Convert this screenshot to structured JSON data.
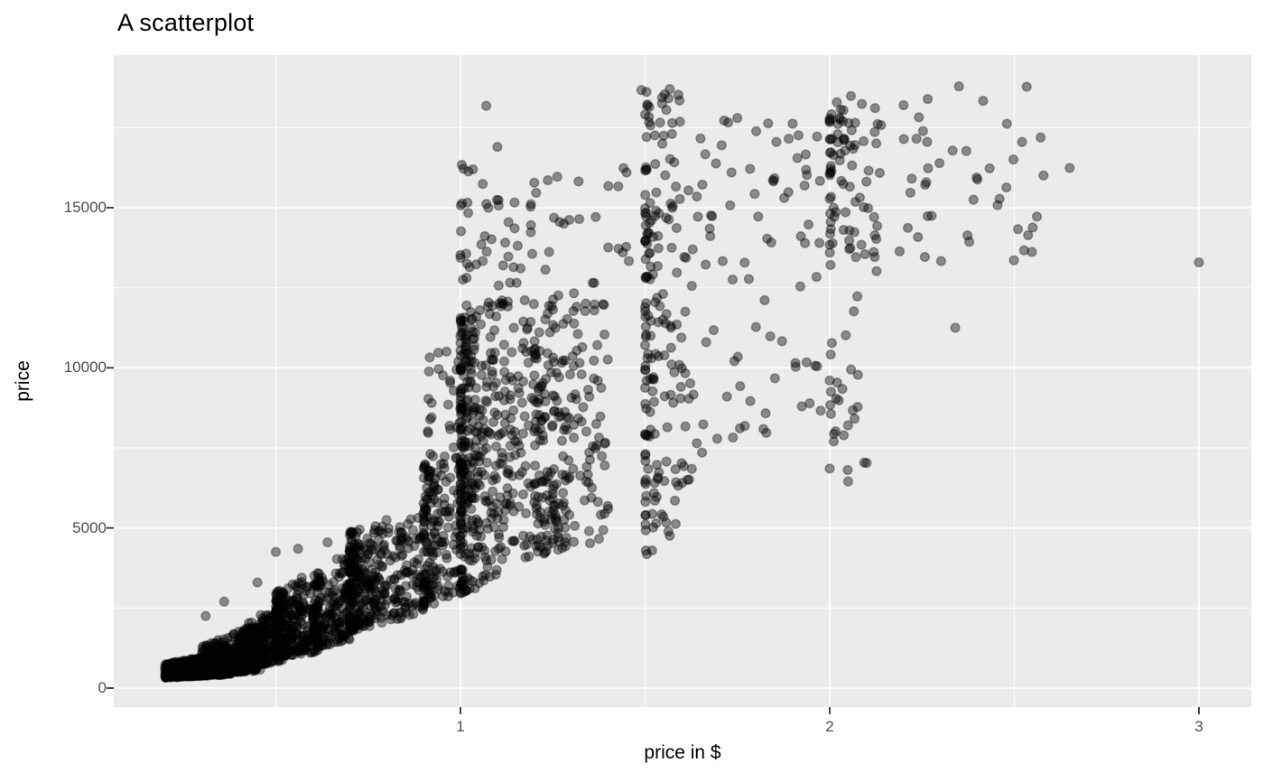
{
  "title": "A scatterplot",
  "axes": {
    "x_title": "price in $",
    "y_title": "price"
  },
  "chart_data": {
    "type": "scatter",
    "title": "A scatterplot",
    "xlabel": "price in $",
    "ylabel": "price",
    "xlim": [
      0.061,
      3.142
    ],
    "ylim": [
      -592,
      19765
    ],
    "x_ticks": [
      1,
      2,
      3
    ],
    "y_ticks": [
      0,
      5000,
      10000,
      15000
    ],
    "x_minor_ticks": [
      0.5,
      1.5,
      2.5
    ],
    "y_minor_ticks": [
      2500,
      7500,
      12500,
      17500
    ],
    "grid": "on",
    "legend": "none",
    "colors": {
      "panel_bg": "#EBEBEB",
      "grid": "#FFFFFF",
      "tick_mark": "#333333",
      "tick_label": "#4D4D4D",
      "title_text": "#000000",
      "point": "#000000"
    },
    "point_style": {
      "radius": 4.9,
      "fill_opacity": 0.42,
      "stroke_opacity": 0.32,
      "stroke_width": 1.5
    },
    "seed": 7,
    "cluster_fields": "x0,x1,n,x_exponent,ymin_left,ymin_right,ymax_left,ymax_right,y_exponent",
    "point_clusters": [
      [
        0.2,
        0.38,
        560,
        1.0,
        326,
        430,
        750,
        1150,
        1.3
      ],
      [
        0.23,
        0.36,
        350,
        1.0,
        340,
        430,
        640,
        900,
        1.1
      ],
      [
        0.3,
        0.47,
        340,
        1.0,
        420,
        560,
        1300,
        2100,
        1.5
      ],
      [
        0.4,
        0.52,
        220,
        1.0,
        600,
        850,
        1900,
        2700,
        1.4
      ],
      [
        0.5,
        0.62,
        300,
        1.7,
        950,
        1150,
        3000,
        3700,
        1.4
      ],
      [
        0.6,
        0.7,
        160,
        1.0,
        1250,
        1500,
        3600,
        4300,
        1.3
      ],
      [
        0.7,
        0.8,
        250,
        1.9,
        1750,
        2050,
        4900,
        5300,
        1.25
      ],
      [
        0.8,
        0.9,
        95,
        1.0,
        2050,
        2350,
        5100,
        5500,
        1.2
      ],
      [
        0.9,
        1.0,
        175,
        1.9,
        2550,
        2850,
        7300,
        7800,
        1.15
      ],
      [
        0.91,
        1.0,
        22,
        1.5,
        7800,
        8000,
        10800,
        11000,
        1.0
      ],
      [
        1.0,
        1.1,
        310,
        2.3,
        2950,
        3350,
        11600,
        12400,
        1.1
      ],
      [
        1.0,
        1.13,
        36,
        2.0,
        11600,
        11800,
        16600,
        17000,
        1.0
      ],
      [
        1.1,
        1.4,
        240,
        1.15,
        3900,
        4600,
        12100,
        12900,
        1.15
      ],
      [
        1.2,
        1.3,
        90,
        2.1,
        4300,
        4700,
        11200,
        11600,
        1.1
      ],
      [
        1.12,
        1.47,
        30,
        1.0,
        12200,
        12600,
        16000,
        16400,
        1.0
      ],
      [
        1.5,
        1.63,
        160,
        2.3,
        3900,
        5100,
        15400,
        15900,
        0.95
      ],
      [
        1.5,
        1.6,
        32,
        2.0,
        15900,
        16100,
        18750,
        18850,
        1.0
      ],
      [
        1.63,
        1.98,
        80,
        1.0,
        6900,
        8600,
        17700,
        18100,
        1.0
      ],
      [
        2.0,
        2.13,
        85,
        2.3,
        12600,
        12900,
        18400,
        18600,
        0.95
      ],
      [
        2.0,
        2.1,
        26,
        2.3,
        6400,
        6600,
        12100,
        12400,
        1.0
      ],
      [
        2.13,
        2.58,
        40,
        1.0,
        12800,
        13200,
        18900,
        19000,
        1.0
      ]
    ],
    "outlier_points": [
      [
        3.0,
        13290
      ],
      [
        2.65,
        16240
      ],
      [
        2.51,
        14330
      ],
      [
        2.55,
        14380
      ],
      [
        2.34,
        11250
      ],
      [
        2.1,
        7030
      ],
      [
        2.05,
        6450
      ],
      [
        1.07,
        18180
      ],
      [
        1.49,
        18670
      ],
      [
        1.75,
        17800
      ],
      [
        0.56,
        4350
      ],
      [
        0.45,
        3300
      ],
      [
        0.64,
        4550
      ],
      [
        0.31,
        2250
      ],
      [
        0.36,
        2700
      ],
      [
        1.2,
        15780
      ],
      [
        1.28,
        14500
      ],
      [
        1.32,
        15820
      ],
      [
        1.45,
        16100
      ],
      [
        2.4,
        15880
      ],
      [
        2.46,
        15280
      ],
      [
        2.37,
        16770
      ],
      [
        2.48,
        17620
      ],
      [
        2.35,
        18790
      ],
      [
        2.2,
        18200
      ],
      [
        1.1,
        16900
      ],
      [
        1.13,
        14550
      ],
      [
        1.19,
        15030
      ],
      [
        0.57,
        3450
      ],
      [
        0.5,
        4250
      ],
      [
        0.2,
        424
      ]
    ]
  }
}
